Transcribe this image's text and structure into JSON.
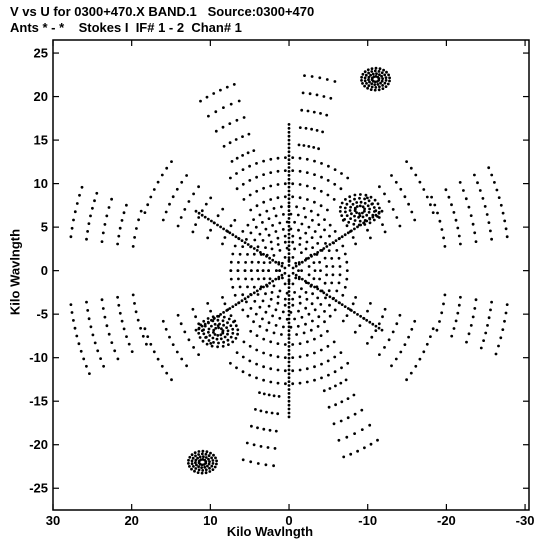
{
  "chart_data": {
    "type": "scatter",
    "title": "V vs U for 0300+470.X BAND.1   Source:0300+470",
    "subtitle": "Ants * - *    Stokes I  IF# 1 - 2  Chan# 1",
    "xlabel": "Kilo Wavlngth",
    "ylabel": "Kilo Wavlngth",
    "xlim": [
      30,
      -30.5
    ],
    "ylim": [
      -27.5,
      26.5
    ],
    "x_ticks": [
      30,
      20,
      10,
      0,
      -10,
      -20,
      -30
    ],
    "y_ticks": [
      25,
      20,
      15,
      10,
      5,
      0,
      -5,
      -10,
      -15,
      -20,
      -25
    ],
    "marker_color": "#000000",
    "grid": false,
    "tracks": [
      {
        "center": [
          0,
          0
        ],
        "radii": [
          1.2,
          1.6
        ],
        "arcs": [
          [
            0,
            360
          ]
        ]
      },
      {
        "center": [
          0,
          0
        ],
        "radii": [
          2.6,
          3.3,
          4.0,
          4.8,
          5.6,
          6.5,
          7.4
        ],
        "arcs": [
          [
            0,
            360
          ]
        ]
      },
      {
        "center": [
          0,
          0
        ],
        "radii": [
          8.5,
          10.0,
          11.5,
          13.0
        ],
        "arcs": [
          [
            55,
            125
          ],
          [
            235,
            305
          ]
        ]
      },
      {
        "center": [
          0,
          0
        ],
        "radii": [
          9.0,
          11.0,
          13.0,
          15.0,
          17.0,
          19.5
        ],
        "arcs": [
          [
            20,
            40
          ],
          [
            200,
            220
          ],
          [
            140,
            160
          ],
          [
            320,
            340
          ]
        ]
      },
      {
        "center": [
          0,
          0
        ],
        "radii": [
          14.5,
          16.5,
          18.5,
          20.5,
          22.5
        ],
        "arcs": [
          [
            95,
            105
          ],
          [
            275,
            285
          ],
          [
            60,
            72
          ],
          [
            240,
            252
          ]
        ]
      },
      {
        "center": [
          0,
          0
        ],
        "radii": [
          20.0,
          22.0,
          24.0,
          26.0,
          28.0
        ],
        "arcs": [
          [
            155,
            172
          ],
          [
            335,
            352
          ],
          [
            8,
            20
          ],
          [
            188,
            200
          ]
        ]
      }
    ],
    "spokes": [
      {
        "angle": 90,
        "r_max": 17
      },
      {
        "angle": 270,
        "r_max": 17
      },
      {
        "angle": 30,
        "r_max": 14
      },
      {
        "angle": 210,
        "r_max": 14
      },
      {
        "angle": 150,
        "r_max": 14
      },
      {
        "angle": 330,
        "r_max": 14
      }
    ],
    "clusters": [
      {
        "u": -9,
        "v": 7,
        "r": 2.5
      },
      {
        "u": 9,
        "v": -7,
        "r": 2.5
      },
      {
        "u": -11,
        "v": 22,
        "r": 1.8
      },
      {
        "u": 11,
        "v": -22,
        "r": 1.8
      }
    ]
  }
}
